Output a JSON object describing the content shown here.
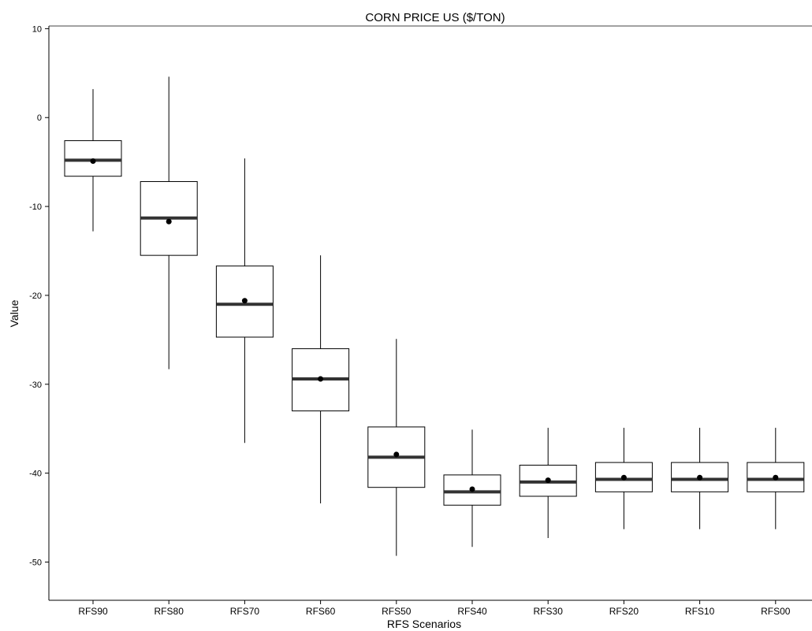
{
  "chart_data": {
    "type": "box",
    "title": "CORN PRICE US  ($/TON)",
    "xlabel": "RFS Scenarios",
    "ylabel": "Value",
    "ylim": [
      -54.3,
      10.3
    ],
    "yticks": [
      10,
      0,
      -10,
      -20,
      -30,
      -40,
      -50
    ],
    "grid": false,
    "categories": [
      "RFS90",
      "RFS80",
      "RFS70",
      "RFS60",
      "RFS50",
      "RFS40",
      "RFS30",
      "RFS20",
      "RFS10",
      "RFS00"
    ],
    "boxes": [
      {
        "min": -12.8,
        "q1": -6.6,
        "median": -4.8,
        "q3": -2.6,
        "max": 3.2,
        "mean": -4.9
      },
      {
        "min": -28.3,
        "q1": -15.5,
        "median": -11.3,
        "q3": -7.2,
        "max": 4.6,
        "mean": -11.7
      },
      {
        "min": -36.6,
        "q1": -24.7,
        "median": -21.0,
        "q3": -16.7,
        "max": -4.6,
        "mean": -20.6
      },
      {
        "min": -43.4,
        "q1": -33.0,
        "median": -29.4,
        "q3": -26.0,
        "max": -15.5,
        "mean": -29.4
      },
      {
        "min": -49.3,
        "q1": -41.6,
        "median": -38.2,
        "q3": -34.8,
        "max": -24.9,
        "mean": -37.9
      },
      {
        "min": -48.3,
        "q1": -43.6,
        "median": -42.1,
        "q3": -40.2,
        "max": -35.1,
        "mean": -41.8
      },
      {
        "min": -47.3,
        "q1": -42.6,
        "median": -41.0,
        "q3": -39.1,
        "max": -34.9,
        "mean": -40.8
      },
      {
        "min": -46.3,
        "q1": -42.1,
        "median": -40.7,
        "q3": -38.8,
        "max": -34.9,
        "mean": -40.5
      },
      {
        "min": -46.3,
        "q1": -42.1,
        "median": -40.7,
        "q3": -38.8,
        "max": -34.9,
        "mean": -40.5
      },
      {
        "min": -46.3,
        "q1": -42.1,
        "median": -40.7,
        "q3": -38.8,
        "max": -34.9,
        "mean": -40.5
      }
    ]
  }
}
